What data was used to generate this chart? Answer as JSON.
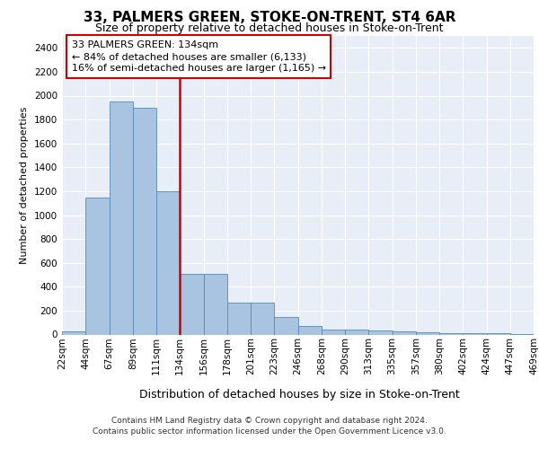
{
  "title": "33, PALMERS GREEN, STOKE-ON-TRENT, ST4 6AR",
  "subtitle": "Size of property relative to detached houses in Stoke-on-Trent",
  "xlabel": "Distribution of detached houses by size in Stoke-on-Trent",
  "ylabel": "Number of detached properties",
  "footer_line1": "Contains HM Land Registry data © Crown copyright and database right 2024.",
  "footer_line2": "Contains public sector information licensed under the Open Government Licence v3.0.",
  "annotation_line1": "33 PALMERS GREEN: 134sqm",
  "annotation_line2": "← 84% of detached houses are smaller (6,133)",
  "annotation_line3": "16% of semi-detached houses are larger (1,165) →",
  "bar_values": [
    30,
    1150,
    1950,
    1900,
    1200,
    510,
    510,
    270,
    270,
    150,
    75,
    45,
    45,
    35,
    30,
    20,
    15,
    10,
    10,
    5
  ],
  "bar_labels": [
    "22sqm",
    "44sqm",
    "67sqm",
    "89sqm",
    "111sqm",
    "134sqm",
    "156sqm",
    "178sqm",
    "201sqm",
    "223sqm",
    "246sqm",
    "268sqm",
    "290sqm",
    "313sqm",
    "335sqm",
    "357sqm",
    "380sqm",
    "402sqm",
    "424sqm",
    "447sqm",
    "469sqm"
  ],
  "bar_color": "#a8c4e0",
  "bar_edgecolor": "#5588bb",
  "vline_color": "#cc0000",
  "annotation_box_color": "#cc0000",
  "ylim": [
    0,
    2500
  ],
  "yticks": [
    0,
    200,
    400,
    600,
    800,
    1000,
    1200,
    1400,
    1600,
    1800,
    2000,
    2200,
    2400
  ],
  "bg_color": "#e8eef8",
  "fig_bg_color": "#ffffff",
  "title_fontsize": 11,
  "subtitle_fontsize": 9,
  "tick_fontsize": 7.5,
  "xlabel_fontsize": 9,
  "ylabel_fontsize": 8
}
